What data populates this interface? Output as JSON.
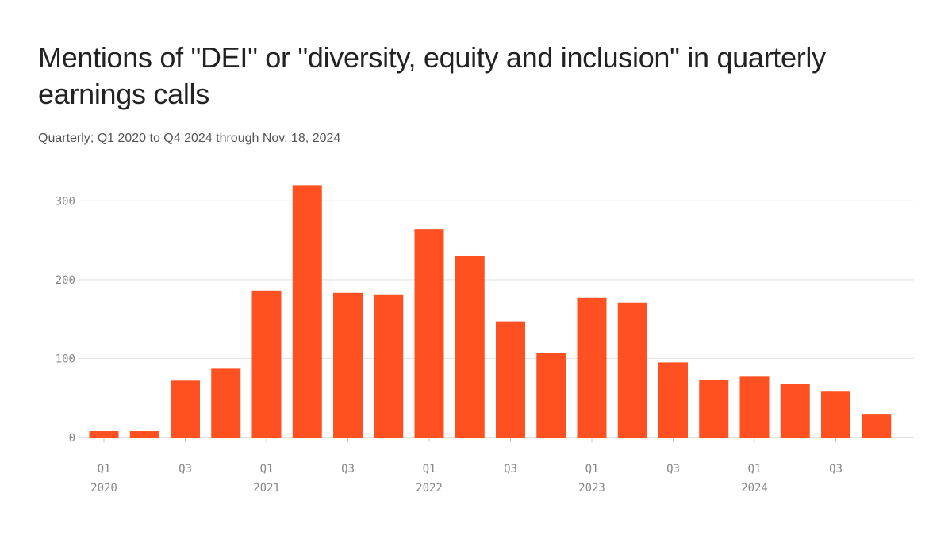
{
  "chart_data": {
    "type": "bar",
    "title": "Mentions of \"DEI\" or \"diversity, equity and inclusion\" in quarterly earnings calls",
    "subtitle": "Quarterly; Q1 2020 to Q4 2024 through Nov. 18, 2024",
    "categories": [
      "Q1 2020",
      "Q2 2020",
      "Q3 2020",
      "Q4 2020",
      "Q1 2021",
      "Q2 2021",
      "Q3 2021",
      "Q4 2021",
      "Q1 2022",
      "Q2 2022",
      "Q3 2022",
      "Q4 2022",
      "Q1 2023",
      "Q2 2023",
      "Q3 2023",
      "Q4 2023",
      "Q1 2024",
      "Q2 2024",
      "Q3 2024",
      "Q4 2024"
    ],
    "values": [
      8,
      8,
      72,
      88,
      186,
      319,
      183,
      181,
      264,
      230,
      147,
      107,
      177,
      171,
      95,
      73,
      77,
      68,
      59,
      30
    ],
    "ylim": [
      0,
      320
    ],
    "yticks": [
      0,
      100,
      200,
      300
    ],
    "xtick_labels": [
      {
        "index": 0,
        "quarter": "Q1",
        "year": "2020"
      },
      {
        "index": 2,
        "quarter": "Q3",
        "year": ""
      },
      {
        "index": 4,
        "quarter": "Q1",
        "year": "2021"
      },
      {
        "index": 6,
        "quarter": "Q3",
        "year": ""
      },
      {
        "index": 8,
        "quarter": "Q1",
        "year": "2022"
      },
      {
        "index": 10,
        "quarter": "Q3",
        "year": ""
      },
      {
        "index": 12,
        "quarter": "Q1",
        "year": "2023"
      },
      {
        "index": 14,
        "quarter": "Q3",
        "year": ""
      },
      {
        "index": 16,
        "quarter": "Q1",
        "year": "2024"
      },
      {
        "index": 18,
        "quarter": "Q3",
        "year": ""
      }
    ],
    "grid": true,
    "bar_color": "#FF5021",
    "xlabel": "",
    "ylabel": ""
  }
}
